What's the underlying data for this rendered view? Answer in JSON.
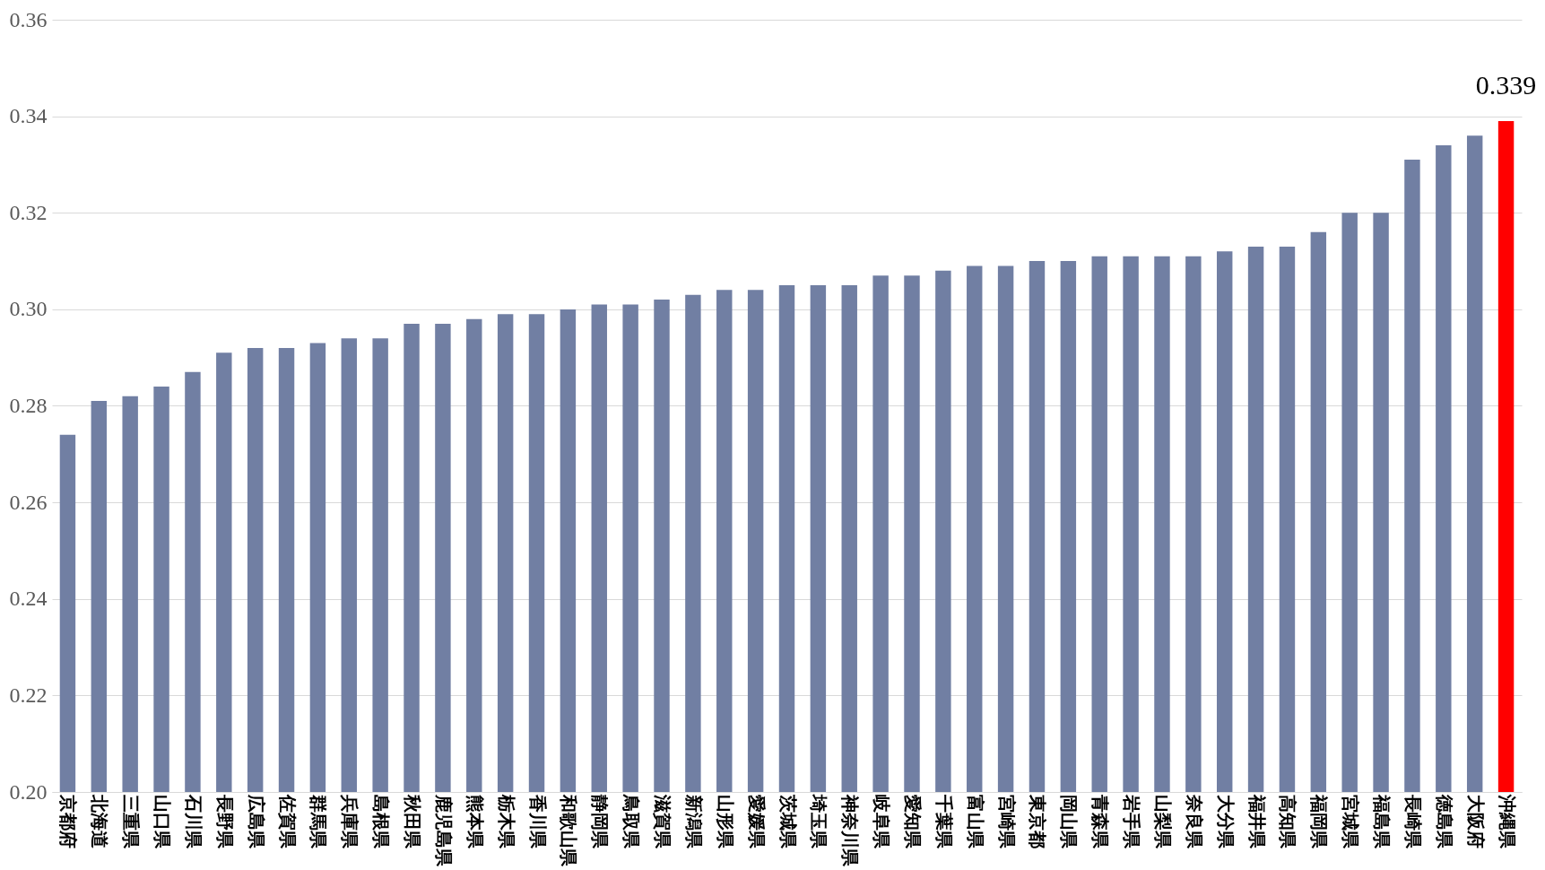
{
  "chart_data": {
    "type": "bar",
    "categories": [
      "京都府",
      "北海道",
      "三重県",
      "山口県",
      "石川県",
      "長野県",
      "広島県",
      "佐賀県",
      "群馬県",
      "兵庫県",
      "島根県",
      "秋田県",
      "鹿児島県",
      "熊本県",
      "栃木県",
      "香川県",
      "和歌山県",
      "静岡県",
      "鳥取県",
      "滋賀県",
      "新潟県",
      "山形県",
      "愛媛県",
      "茨城県",
      "埼玉県",
      "神奈川県",
      "岐阜県",
      "愛知県",
      "千葉県",
      "富山県",
      "宮崎県",
      "東京都",
      "岡山県",
      "青森県",
      "岩手県",
      "山梨県",
      "奈良県",
      "大分県",
      "福井県",
      "高知県",
      "福岡県",
      "宮城県",
      "福島県",
      "長崎県",
      "徳島県",
      "大阪府",
      "沖縄県"
    ],
    "values": [
      0.274,
      0.281,
      0.282,
      0.284,
      0.287,
      0.291,
      0.292,
      0.292,
      0.293,
      0.294,
      0.294,
      0.297,
      0.297,
      0.298,
      0.299,
      0.299,
      0.3,
      0.301,
      0.301,
      0.302,
      0.303,
      0.304,
      0.304,
      0.305,
      0.305,
      0.305,
      0.307,
      0.307,
      0.308,
      0.309,
      0.309,
      0.31,
      0.31,
      0.311,
      0.311,
      0.311,
      0.311,
      0.312,
      0.313,
      0.313,
      0.316,
      0.32,
      0.32,
      0.331,
      0.334,
      0.336,
      0.339
    ],
    "colors": [
      "#717fa3",
      "#717fa3",
      "#717fa3",
      "#717fa3",
      "#717fa3",
      "#717fa3",
      "#717fa3",
      "#717fa3",
      "#717fa3",
      "#717fa3",
      "#717fa3",
      "#717fa3",
      "#717fa3",
      "#717fa3",
      "#717fa3",
      "#717fa3",
      "#717fa3",
      "#717fa3",
      "#717fa3",
      "#717fa3",
      "#717fa3",
      "#717fa3",
      "#717fa3",
      "#717fa3",
      "#717fa3",
      "#717fa3",
      "#717fa3",
      "#717fa3",
      "#717fa3",
      "#717fa3",
      "#717fa3",
      "#717fa3",
      "#717fa3",
      "#717fa3",
      "#717fa3",
      "#717fa3",
      "#717fa3",
      "#717fa3",
      "#717fa3",
      "#717fa3",
      "#717fa3",
      "#717fa3",
      "#717fa3",
      "#717fa3",
      "#717fa3",
      "#717fa3",
      "#ff0000"
    ],
    "value_labels": [
      null,
      null,
      null,
      null,
      null,
      null,
      null,
      null,
      null,
      null,
      null,
      null,
      null,
      null,
      null,
      null,
      null,
      null,
      null,
      null,
      null,
      null,
      null,
      null,
      null,
      null,
      null,
      null,
      null,
      null,
      null,
      null,
      null,
      null,
      null,
      null,
      null,
      null,
      null,
      null,
      null,
      null,
      null,
      null,
      null,
      null,
      "0.339"
    ],
    "ylim": [
      0.2,
      0.36
    ],
    "yticks": [
      {
        "value": 0.2,
        "label": "0.20"
      },
      {
        "value": 0.22,
        "label": "0.22"
      },
      {
        "value": 0.24,
        "label": "0.24"
      },
      {
        "value": 0.26,
        "label": "0.26"
      },
      {
        "value": 0.28,
        "label": "0.28"
      },
      {
        "value": 0.3,
        "label": "0.30"
      },
      {
        "value": 0.32,
        "label": "0.32"
      },
      {
        "value": 0.34,
        "label": "0.34"
      },
      {
        "value": 0.36,
        "label": "0.36"
      }
    ],
    "grid": "y"
  }
}
